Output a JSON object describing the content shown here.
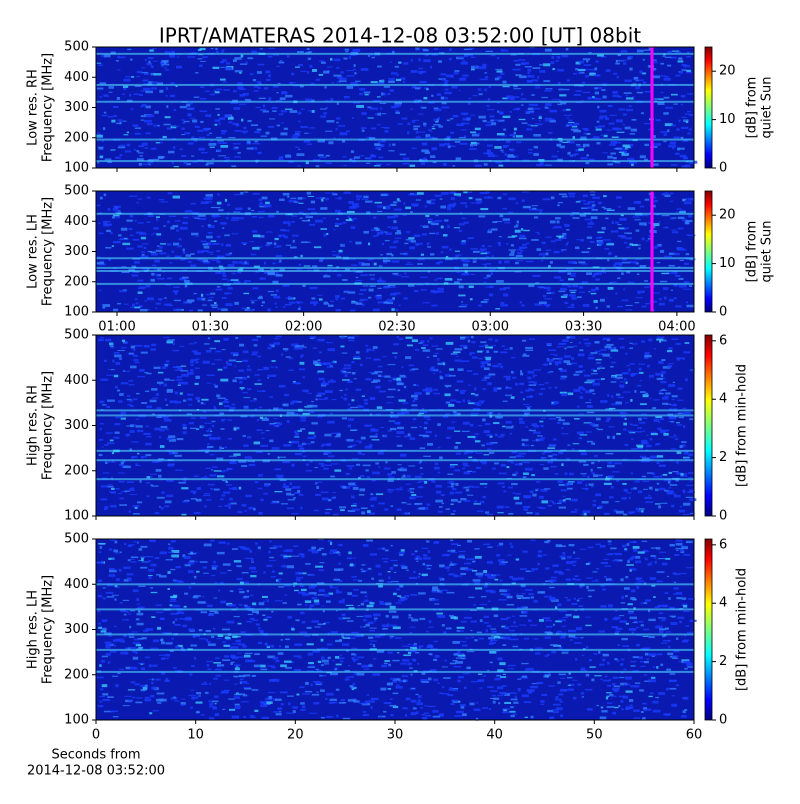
{
  "title": "IPRT/AMATERAS 2014-12-08 03:52:00 [UT]   08bit",
  "chart_data": [
    {
      "type": "spectrogram",
      "ylabel": [
        "Low res. RH",
        "Frequency [MHz]"
      ],
      "xlim": [
        53.25,
        245.5
      ],
      "xticks": [
        {
          "value": 60,
          "label": "01:00"
        },
        {
          "value": 90,
          "label": "01:30"
        },
        {
          "value": 120,
          "label": "02:00"
        },
        {
          "value": 150,
          "label": "02:30"
        },
        {
          "value": 180,
          "label": "03:00"
        },
        {
          "value": 210,
          "label": "03:30"
        },
        {
          "value": 240,
          "label": "04:00"
        }
      ],
      "show_xtick_labels": false,
      "marker_x": 232,
      "ylim": [
        100,
        500
      ],
      "yticks": [
        100,
        200,
        300,
        400,
        500
      ],
      "clim": [
        0,
        25
      ],
      "cticks": [
        0,
        10,
        20
      ],
      "clabel": [
        "[dB] from",
        "quiet Sun"
      ]
    },
    {
      "type": "spectrogram",
      "ylabel": [
        "Low res. LH",
        "Frequency [MHz]"
      ],
      "xlim": [
        53.25,
        245.5
      ],
      "xticks": [
        {
          "value": 60,
          "label": "01:00"
        },
        {
          "value": 90,
          "label": "01:30"
        },
        {
          "value": 120,
          "label": "02:00"
        },
        {
          "value": 150,
          "label": "02:30"
        },
        {
          "value": 180,
          "label": "03:00"
        },
        {
          "value": 210,
          "label": "03:30"
        },
        {
          "value": 240,
          "label": "04:00"
        }
      ],
      "show_xtick_labels": true,
      "marker_x": 232,
      "ylim": [
        100,
        500
      ],
      "yticks": [
        100,
        200,
        300,
        400,
        500
      ],
      "clim": [
        0,
        25
      ],
      "cticks": [
        0,
        10,
        20
      ],
      "clabel": [
        "[dB] from",
        "quiet Sun"
      ]
    },
    {
      "type": "spectrogram",
      "ylabel": [
        "High res. RH",
        "Frequency [MHz]"
      ],
      "xlim": [
        0,
        60
      ],
      "xticks": [
        0,
        10,
        20,
        30,
        40,
        50,
        60
      ],
      "show_xtick_labels": false,
      "ylim": [
        100,
        500
      ],
      "yticks": [
        100,
        200,
        300,
        400,
        500
      ],
      "clim": [
        0,
        6.2
      ],
      "cticks": [
        0,
        2,
        4,
        6
      ],
      "clabel": [
        "[dB] from min-hold"
      ]
    },
    {
      "type": "spectrogram",
      "ylabel": [
        "High res. LH",
        "Frequency [MHz]"
      ],
      "xlim": [
        0,
        60
      ],
      "xticks": [
        0,
        10,
        20,
        30,
        40,
        50,
        60
      ],
      "show_xtick_labels": true,
      "ylim": [
        100,
        500
      ],
      "yticks": [
        100,
        200,
        300,
        400,
        500
      ],
      "clim": [
        0,
        6.2
      ],
      "cticks": [
        0,
        2,
        4,
        6
      ],
      "clabel": [
        "[dB] from min-hold"
      ],
      "xlabel": [
        "Seconds from",
        "2014-12-08 03:52:00"
      ]
    }
  ]
}
